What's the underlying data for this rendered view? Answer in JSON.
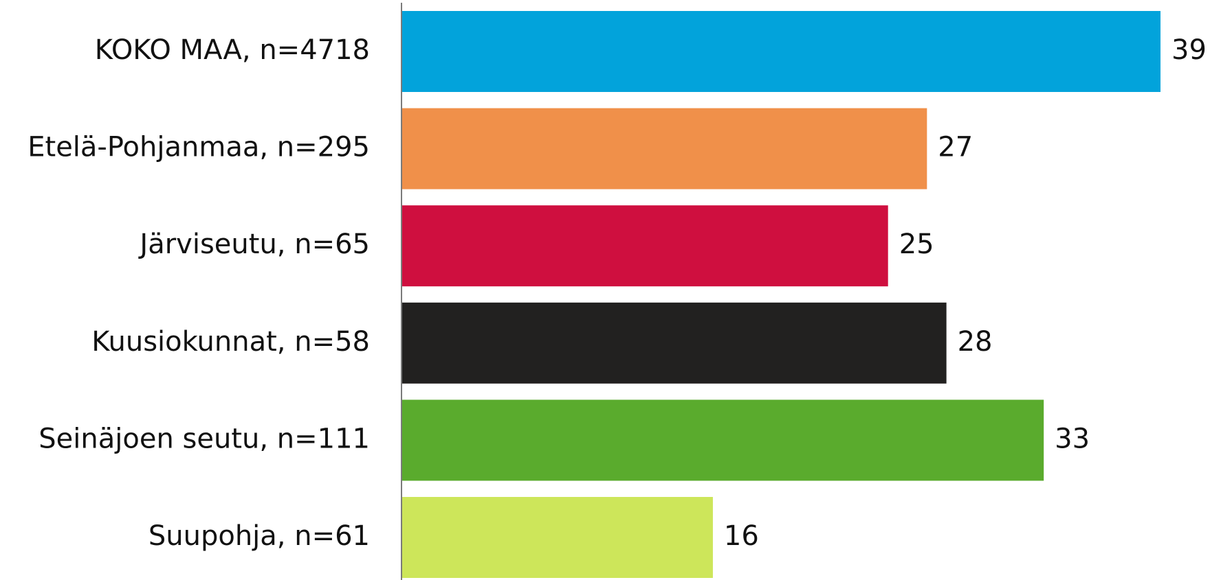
{
  "chart_data": {
    "type": "bar",
    "orientation": "horizontal",
    "title": "",
    "xlabel": "",
    "ylabel": "",
    "categories": [
      "KOKO MAA, n=4718",
      "Etelä-Pohjanmaa, n=295",
      "Järviseutu, n=65",
      "Kuusiokunnat, n=58",
      "Seinäjoen seutu, n=111",
      "Suupohja, n=61"
    ],
    "values": [
      39,
      27,
      25,
      28,
      33,
      16
    ],
    "colors": [
      "#02A3DB",
      "#F0904A",
      "#CF0F3F",
      "#222120",
      "#5AAB2D",
      "#CDE65A"
    ],
    "xlim": [
      0,
      39
    ],
    "grid": false,
    "legend": "none",
    "data_labels": true
  }
}
